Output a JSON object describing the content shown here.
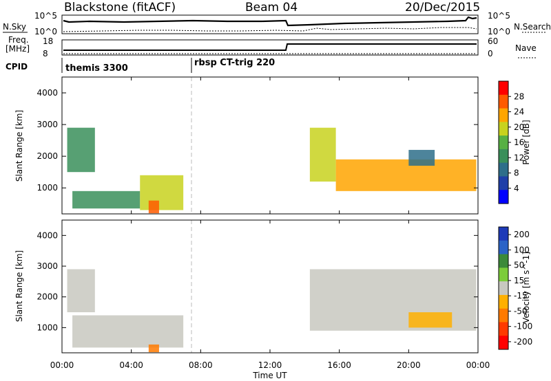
{
  "header": {
    "station": "Blackstone (fitACF)",
    "beam": "Beam 04",
    "date": "20/Dec/2015"
  },
  "colors": {
    "power_scale": [
      "#0000ff",
      "#1f3fa8",
      "#2e6e8a",
      "#3a8f5a",
      "#57b043",
      "#c8d21e",
      "#ffa500",
      "#ff5a00",
      "#ff0000"
    ],
    "velocity_scale": [
      "#1e3ab8",
      "#2b63c6",
      "#3c8a3a",
      "#7ccc3a",
      "#c8c8c0",
      "#ffb000",
      "#ff7a00",
      "#ff3a00",
      "#ff0000"
    ]
  },
  "top_panels": {
    "nsky_label": "N.Sky",
    "nsearch_label": "N.Search",
    "freq_label_1": "Freq.",
    "freq_label_2": "[MHz]",
    "nave_label": "Nave",
    "cpid_label": "CPID",
    "nsky_ticks": [
      "10^5",
      "10^0"
    ],
    "nsearch_ticks": [
      "10^5",
      "10^0"
    ],
    "freq_ticks": [
      "18",
      "8"
    ],
    "nave_ticks": [
      "60",
      "0"
    ],
    "cpid_segments": [
      {
        "label": "themis 3300",
        "start_hour": 0
      },
      {
        "label": "rbsp CT-trig 220",
        "start_hour": 7.5
      }
    ]
  },
  "x_axis": {
    "title": "Time UT",
    "ticks": [
      "00:00",
      "04:00",
      "08:00",
      "12:00",
      "16:00",
      "20:00",
      "00:00"
    ]
  },
  "chart_data": [
    {
      "type": "heatmap",
      "title": "",
      "ylabel": "Slant Range [km]",
      "xlabel": "",
      "xlim": [
        0,
        24
      ],
      "ylim": [
        180,
        4500
      ],
      "yticks": [
        "1000",
        "2000",
        "3000",
        "4000"
      ],
      "colorbar": {
        "label": "Power [dB]",
        "ticks": [
          "4",
          "8",
          "12",
          "16",
          "20",
          "24",
          "28"
        ],
        "range": [
          0,
          32
        ]
      },
      "regions": [
        {
          "t0": 0.3,
          "t1": 1.9,
          "r0": 1500,
          "r1": 2900,
          "value": 14
        },
        {
          "t0": 0.6,
          "t1": 4.5,
          "r0": 350,
          "r1": 900,
          "value": 14
        },
        {
          "t0": 4.5,
          "t1": 7.0,
          "r0": 300,
          "r1": 1400,
          "value": 18
        },
        {
          "t0": 5.0,
          "t1": 5.6,
          "r0": 200,
          "r1": 600,
          "value": 28
        },
        {
          "t0": 14.3,
          "t1": 15.8,
          "r0": 1200,
          "r1": 2900,
          "value": 18
        },
        {
          "t0": 15.8,
          "t1": 23.9,
          "r0": 900,
          "r1": 1900,
          "value": 22
        },
        {
          "t0": 20.0,
          "t1": 21.5,
          "r0": 1700,
          "r1": 2200,
          "value": 10
        }
      ]
    },
    {
      "type": "heatmap",
      "title": "",
      "ylabel": "Slant Range [km]",
      "xlabel": "Time UT",
      "xlim": [
        0,
        24
      ],
      "ylim": [
        180,
        4500
      ],
      "yticks": [
        "1000",
        "2000",
        "3000",
        "4000"
      ],
      "colorbar": {
        "label": "Velocity [m s^-1]",
        "ticks": [
          "200",
          "100",
          "50",
          "15",
          "-15",
          "-50",
          "-100",
          "-200"
        ],
        "range": [
          -250,
          250
        ]
      },
      "regions": [
        {
          "t0": 0.3,
          "t1": 1.9,
          "r0": 1500,
          "r1": 2900,
          "value": -5
        },
        {
          "t0": 0.6,
          "t1": 7.0,
          "r0": 350,
          "r1": 1400,
          "value": 0
        },
        {
          "t0": 5.0,
          "t1": 5.6,
          "r0": 200,
          "r1": 450,
          "value": -120
        },
        {
          "t0": 14.3,
          "t1": 23.9,
          "r0": 900,
          "r1": 2900,
          "value": 5
        },
        {
          "t0": 20.0,
          "t1": 22.5,
          "r0": 1000,
          "r1": 1500,
          "value": -60
        }
      ]
    }
  ]
}
